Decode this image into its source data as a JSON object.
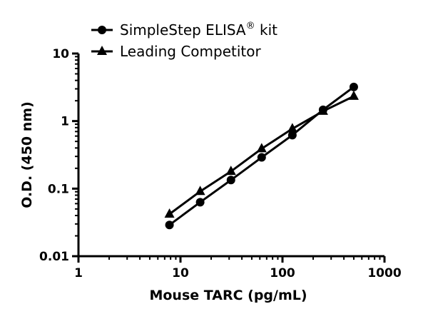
{
  "chart_data": {
    "type": "line",
    "title": "",
    "xlabel": "Mouse TARC (pg/mL)",
    "ylabel": "O.D. (450 nm)",
    "xscale": "log",
    "yscale": "log",
    "xlim": [
      1,
      1000
    ],
    "ylim": [
      0.01,
      10
    ],
    "xticks": [
      "1",
      "10",
      "100",
      "1000"
    ],
    "yticks": [
      "0.01",
      "0.1",
      "1",
      "10"
    ],
    "grid": false,
    "legend_position": "top",
    "x": [
      7.8,
      15.6,
      31.25,
      62.5,
      125,
      250,
      500
    ],
    "series": [
      {
        "name": "SimpleStep ELISA® kit",
        "marker": "circle",
        "color": "#000000",
        "values": [
          0.029,
          0.063,
          0.134,
          0.29,
          0.62,
          1.47,
          3.2
        ]
      },
      {
        "name": "Leading Competitor",
        "marker": "triangle",
        "color": "#000000",
        "values": [
          0.042,
          0.091,
          0.18,
          0.39,
          0.77,
          1.4,
          2.33
        ]
      }
    ],
    "legend_labels": {
      "s0_main": "SimpleStep ELISA",
      "s0_sup": "®",
      "s0_suffix": " kit",
      "s1": "Leading Competitor"
    }
  }
}
